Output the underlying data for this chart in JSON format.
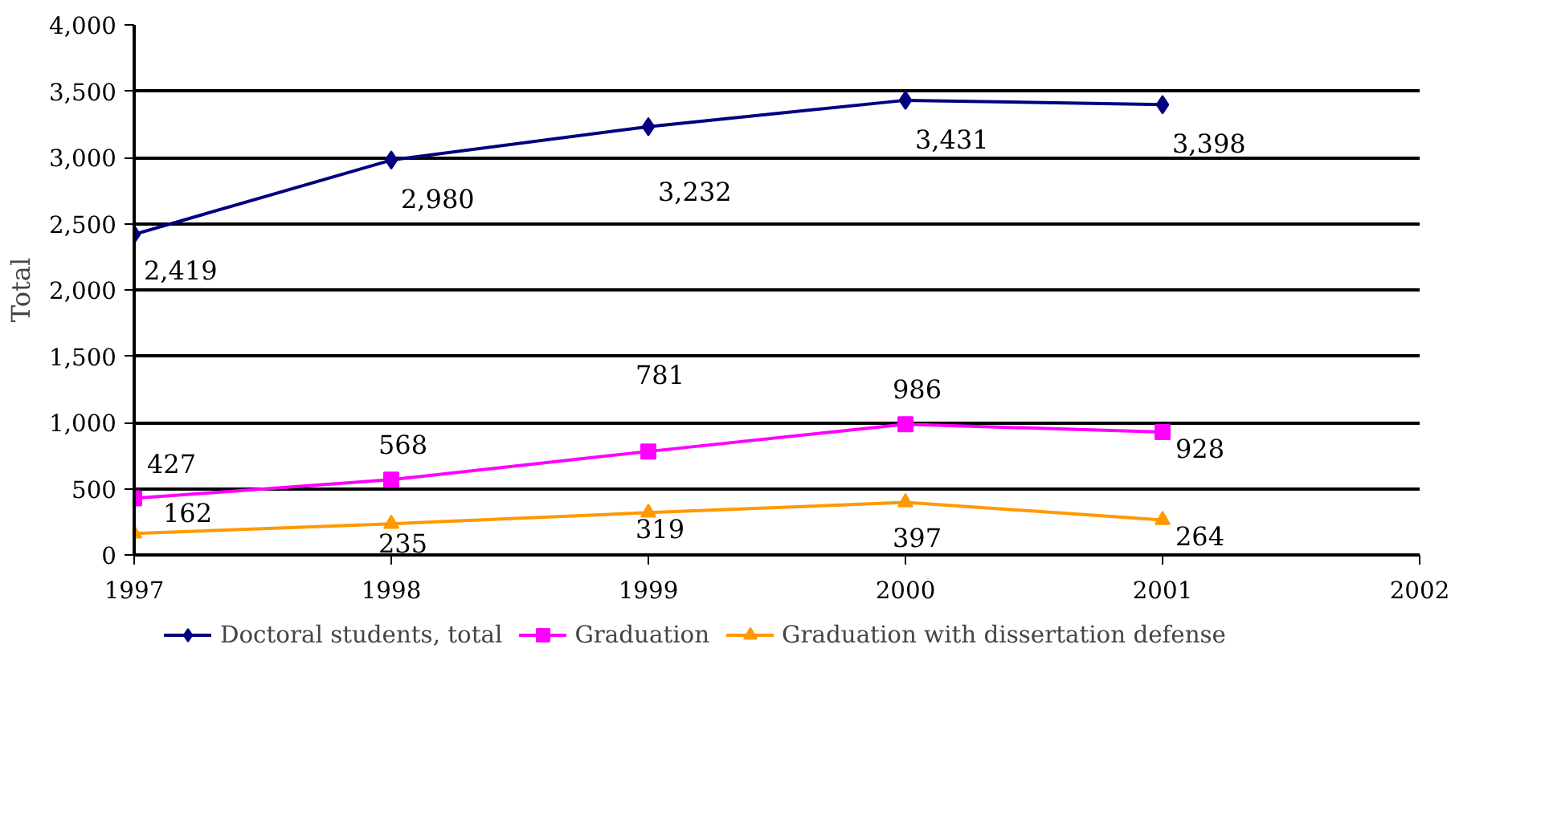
{
  "chart_data": {
    "type": "line",
    "ylabel": "Total",
    "x": [
      1997,
      1998,
      1999,
      2000,
      2001
    ],
    "xlim": [
      1997,
      2002
    ],
    "xticks": [
      1997,
      1998,
      1999,
      2000,
      2001,
      2002
    ],
    "ylim": [
      0,
      4000
    ],
    "yticks": [
      {
        "value": 0,
        "label": "0"
      },
      {
        "value": 500,
        "label": "500"
      },
      {
        "value": 1000,
        "label": "1,000"
      },
      {
        "value": 1500,
        "label": "1,500"
      },
      {
        "value": 2000,
        "label": "2,000"
      },
      {
        "value": 2500,
        "label": "2,500"
      },
      {
        "value": 3000,
        "label": "3,000"
      },
      {
        "value": 3500,
        "label": "3,500"
      },
      {
        "value": 4000,
        "label": "4,000"
      }
    ],
    "grid": "y",
    "legend": "bottom",
    "data_labels": true,
    "line_style": "solid",
    "series": [
      {
        "name": "Doctoral students, total",
        "color": "#000080",
        "marker": "diamond",
        "values": [
          2419,
          2980,
          3232,
          3431,
          3398
        ],
        "value_labels": [
          "2,419",
          "2,980",
          "3,232",
          "3,431",
          "3,398"
        ]
      },
      {
        "name": "Graduation",
        "color": "#ff00ff",
        "marker": "square",
        "values": [
          427,
          568,
          781,
          986,
          928
        ],
        "value_labels": [
          "427",
          "568",
          "781",
          "986",
          "928"
        ]
      },
      {
        "name": "Graduation with dissertation defense",
        "color": "#ff9900",
        "marker": "triangle",
        "values": [
          162,
          235,
          319,
          397,
          264
        ],
        "value_labels": [
          "162",
          "235",
          "319",
          "397",
          "264"
        ]
      }
    ]
  }
}
